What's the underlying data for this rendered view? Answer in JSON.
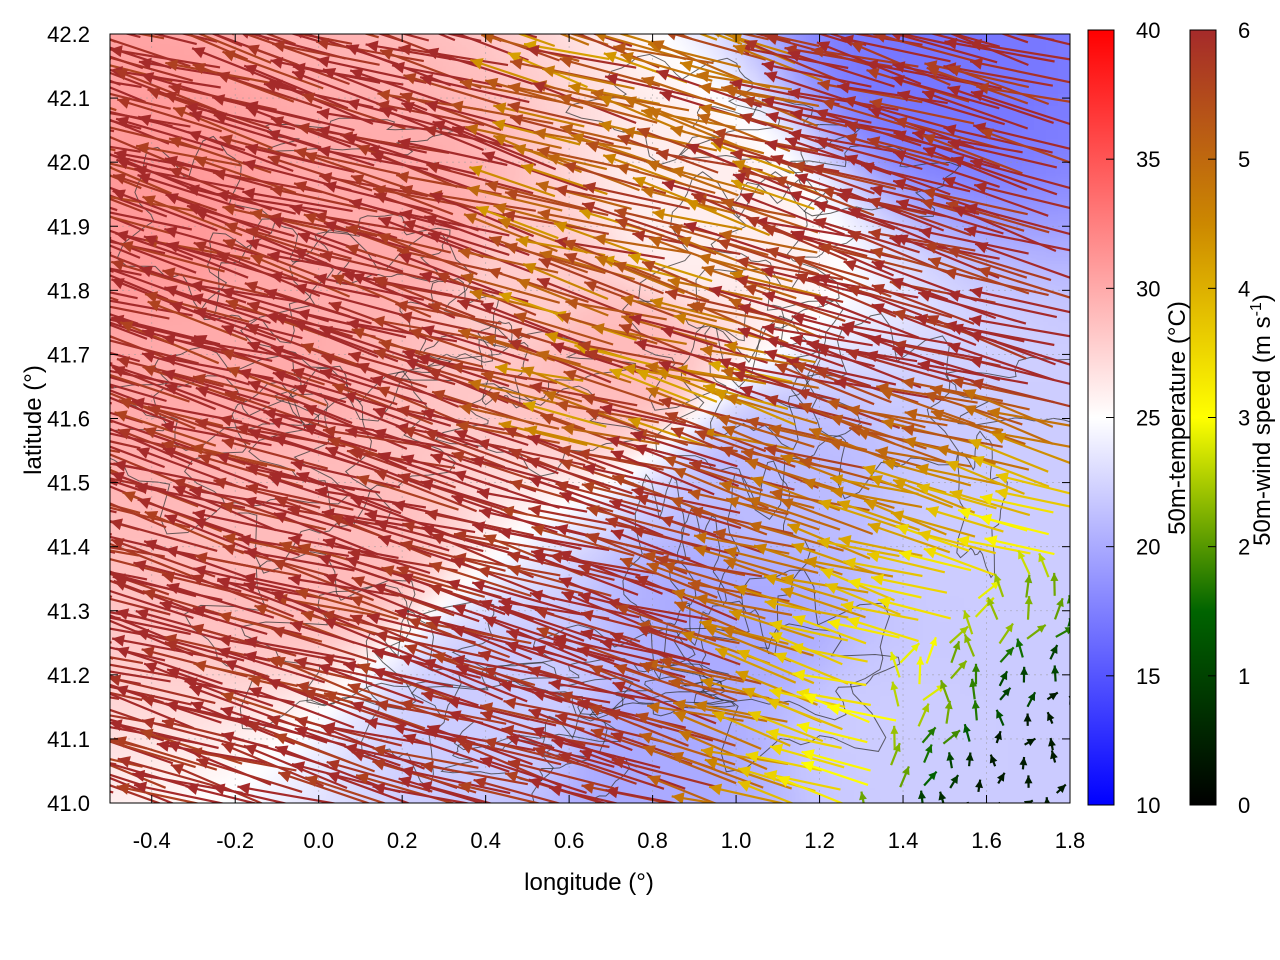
{
  "chart_data": {
    "type": "heatmap",
    "subtype": "vector-field-with-contours",
    "xlabel": "longitude (°)",
    "ylabel": "latitude (°)",
    "xlim": [
      -0.5,
      1.8
    ],
    "ylim": [
      41.0,
      42.2
    ],
    "x_ticks": [
      "-0.4",
      "-0.2",
      "0.0",
      "0.2",
      "0.4",
      "0.6",
      "0.8",
      "1.0",
      "1.2",
      "1.4",
      "1.6",
      "1.8"
    ],
    "y_ticks": [
      "41.0",
      "41.1",
      "41.2",
      "41.3",
      "41.4",
      "41.5",
      "41.6",
      "41.7",
      "41.8",
      "41.9",
      "42.0",
      "42.1",
      "42.2"
    ],
    "grid": true,
    "temperature_colorbar": {
      "label": "50m-temperature (°C)",
      "range": [
        10,
        40
      ],
      "ticks": [
        "10",
        "15",
        "20",
        "25",
        "30",
        "35",
        "40"
      ],
      "colors": [
        "#0000ff",
        "#ffffff",
        "#ff0000"
      ]
    },
    "wind_colorbar": {
      "label": "50m-wind speed (m s",
      "label_sup": "-1",
      "label_end": ")",
      "range": [
        0,
        6
      ],
      "ticks": [
        "0",
        "1",
        "2",
        "3",
        "4",
        "5",
        "6"
      ],
      "colors": [
        "#000000",
        "#006400",
        "#ffff00",
        "#cc8800",
        "#a52a2a"
      ]
    },
    "temperature_regions": [
      {
        "lon": -0.4,
        "lat": 41.9,
        "temp": 31
      },
      {
        "lon": -0.2,
        "lat": 41.7,
        "temp": 30
      },
      {
        "lon": 0.0,
        "lat": 41.4,
        "temp": 29
      },
      {
        "lon": 0.2,
        "lat": 41.9,
        "temp": 30
      },
      {
        "lon": 0.5,
        "lat": 41.8,
        "temp": 28
      },
      {
        "lon": 0.7,
        "lat": 41.7,
        "temp": 29
      },
      {
        "lon": 0.9,
        "lat": 41.9,
        "temp": 26
      },
      {
        "lon": 1.1,
        "lat": 41.5,
        "temp": 21
      },
      {
        "lon": 1.4,
        "lat": 41.1,
        "temp": 22
      },
      {
        "lon": 1.6,
        "lat": 41.4,
        "temp": 22
      },
      {
        "lon": 1.5,
        "lat": 42.15,
        "temp": 17
      },
      {
        "lon": 0.8,
        "lat": 41.05,
        "temp": 20
      },
      {
        "lon": 0.45,
        "lat": 41.15,
        "temp": 22
      },
      {
        "lon": 1.0,
        "lat": 41.3,
        "temp": 20
      }
    ],
    "wind_sectors": [
      {
        "region": "west/inland",
        "direction": "WNW (arrows point to upper-left)",
        "speed": 6
      },
      {
        "region": "center north",
        "direction": "WNW",
        "speed": 4.5
      },
      {
        "region": "southeast sea",
        "direction": "weak, variable",
        "speed": 1.5
      }
    ]
  }
}
